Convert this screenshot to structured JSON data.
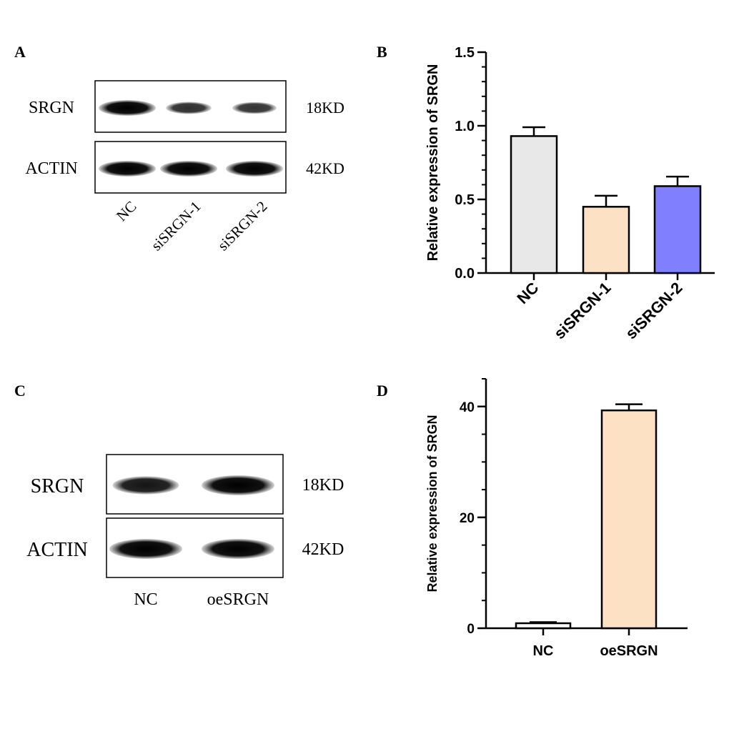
{
  "panels": {
    "A": {
      "letter": "A",
      "rows": [
        {
          "protein": "SRGN",
          "size": "18KD",
          "band_intensity": [
            1.0,
            0.55,
            0.5
          ]
        },
        {
          "protein": "ACTIN",
          "size": "42KD",
          "band_intensity": [
            1.0,
            1.0,
            1.0
          ]
        }
      ],
      "lanes": [
        "NC",
        "siSRGN-1",
        "siSRGN-2"
      ]
    },
    "C": {
      "letter": "C",
      "rows": [
        {
          "protein": "SRGN",
          "size": "18KD",
          "band_intensity": [
            0.8,
            1.0
          ]
        },
        {
          "protein": "ACTIN",
          "size": "42KD",
          "band_intensity": [
            1.0,
            1.0
          ]
        }
      ],
      "lanes": [
        "NC",
        "oeSRGN"
      ]
    },
    "B": {
      "letter": "B"
    },
    "D": {
      "letter": "D"
    }
  },
  "colors": {
    "nc_fill": "#e8e8e8",
    "si1_fill": "#fde1c5",
    "si2_fill": "#8080ff",
    "oe_fill": "#fde1c5"
  },
  "chart_data": [
    {
      "panel": "B",
      "type": "bar",
      "categories": [
        "NC",
        "siSRGN-1",
        "siSRGN-2"
      ],
      "values": [
        0.93,
        0.45,
        0.59
      ],
      "errors": [
        0.06,
        0.075,
        0.065
      ],
      "ylabel": "Relative expression of SRGN",
      "xlabel": "",
      "ylim": [
        0,
        1.5
      ],
      "yticks": [
        "0.0",
        "0.5",
        "1.0",
        "1.5"
      ],
      "colors": [
        "#e8e8e8",
        "#fde1c5",
        "#8080ff"
      ],
      "grid": false
    },
    {
      "panel": "D",
      "type": "bar",
      "categories": [
        "NC",
        "oeSRGN"
      ],
      "values": [
        0.9,
        39.3
      ],
      "errors": [
        0.2,
        1.1
      ],
      "ylabel": "Relative expression of SRGN",
      "xlabel": "",
      "ylim": [
        0,
        45
      ],
      "yticks": [
        "0",
        "20",
        "40"
      ],
      "colors": [
        "#ffffff",
        "#fde1c5"
      ],
      "grid": false
    }
  ]
}
